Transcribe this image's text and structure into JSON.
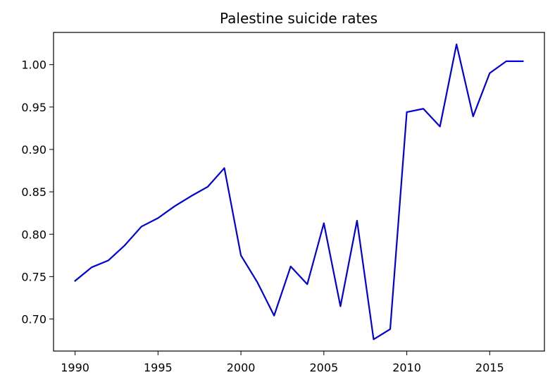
{
  "chart_data": {
    "type": "line",
    "title": "Palestine suicide rates",
    "xlabel": "",
    "ylabel": "",
    "xlim": [
      1988.7,
      2018.3
    ],
    "ylim": [
      0.6622,
      1.038
    ],
    "x_ticks": [
      1990,
      1995,
      2000,
      2005,
      2010,
      2015
    ],
    "x_tick_labels": [
      "1990",
      "1995",
      "2000",
      "2005",
      "2010",
      "2015"
    ],
    "y_ticks": [
      0.7,
      0.75,
      0.8,
      0.85,
      0.9,
      0.95,
      1.0
    ],
    "y_tick_labels": [
      "0.70",
      "0.75",
      "0.80",
      "0.85",
      "0.90",
      "0.95",
      "1.00"
    ],
    "grid": false,
    "series": [
      {
        "color": "#0000dd",
        "x": [
          1990,
          1991,
          1992,
          1993,
          1994,
          1995,
          1996,
          1997,
          1998,
          1999,
          2000,
          2001,
          2002,
          2003,
          2004,
          2005,
          2006,
          2007,
          2008,
          2009,
          2010,
          2011,
          2012,
          2013,
          2014,
          2015,
          2016,
          2017
        ],
        "values": [
          0.745,
          0.761,
          0.769,
          0.787,
          0.809,
          0.819,
          0.833,
          0.845,
          0.856,
          0.878,
          0.775,
          0.743,
          0.704,
          0.762,
          0.741,
          0.813,
          0.715,
          0.816,
          0.676,
          0.688,
          0.944,
          0.948,
          0.927,
          1.024,
          0.939,
          0.99,
          1.004,
          1.004
        ]
      }
    ]
  }
}
